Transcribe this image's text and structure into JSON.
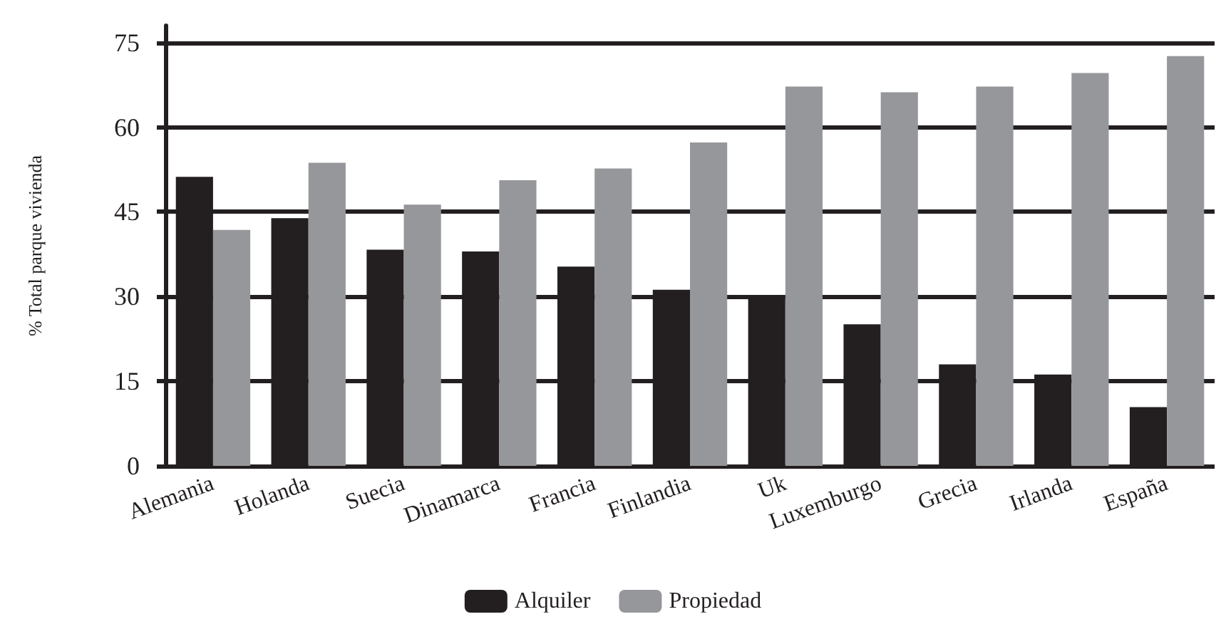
{
  "chart_data": {
    "type": "bar",
    "ylabel": "% Total parque vivienda",
    "categories": [
      "Alemania",
      "Holanda",
      "Suecia",
      "Dinamarca",
      "Francia",
      "Finlandia",
      "Uk",
      "Luxemburgo",
      "Grecia",
      "Irlanda",
      "España"
    ],
    "series": [
      {
        "name": "Alquiler",
        "color": "#231f20",
        "values": [
          51.2,
          43.9,
          38.3,
          38.0,
          35.3,
          31.2,
          29.7,
          25.1,
          18.0,
          16.2,
          10.4
        ]
      },
      {
        "name": "Propiedad",
        "color": "#96979a",
        "values": [
          41.8,
          53.7,
          46.3,
          50.6,
          52.7,
          57.3,
          67.2,
          66.2,
          67.2,
          69.6,
          72.6
        ]
      }
    ],
    "ylim": [
      0,
      78
    ],
    "yticks": [
      0,
      15,
      30,
      45,
      60,
      75
    ],
    "grid": "y",
    "legend": "bottom"
  }
}
